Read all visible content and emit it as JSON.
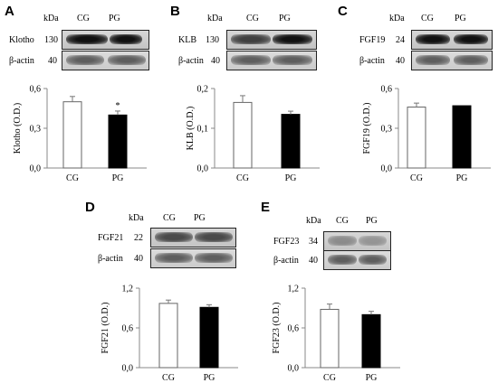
{
  "header": {
    "kda": "kDa",
    "groups": [
      "CG",
      "PG"
    ],
    "reference_protein": "β-actin",
    "actin_kda": "40"
  },
  "panels": [
    {
      "letter": "A",
      "protein": "Klotho",
      "kda": "130"
    },
    {
      "letter": "B",
      "protein": "KLB",
      "kda": "130"
    },
    {
      "letter": "C",
      "protein": "FGF19",
      "kda": "24"
    },
    {
      "letter": "D",
      "protein": "FGF21",
      "kda": "22"
    },
    {
      "letter": "E",
      "protein": "FGF23",
      "kda": "34"
    }
  ],
  "chart_data": [
    {
      "type": "bar",
      "panel": "A",
      "categories": [
        "CG",
        "PG"
      ],
      "values": [
        0.5,
        0.4
      ],
      "errors": [
        0.04,
        0.03
      ],
      "ylabel": "Klotho (O.D.)",
      "ylim": [
        0,
        0.6
      ],
      "yticks": [
        "0,0",
        "0,3",
        "0,6"
      ],
      "significance": [
        "",
        "*"
      ],
      "bar_fill": [
        "#ffffff",
        "#000000"
      ]
    },
    {
      "type": "bar",
      "panel": "B",
      "categories": [
        "CG",
        "PG"
      ],
      "values": [
        0.165,
        0.135
      ],
      "errors": [
        0.017,
        0.008
      ],
      "ylabel": "KLB (O.D.)",
      "ylim": [
        0,
        0.2
      ],
      "yticks": [
        "0,0",
        "0,1",
        "0,2"
      ],
      "significance": [
        "",
        ""
      ],
      "bar_fill": [
        "#ffffff",
        "#000000"
      ]
    },
    {
      "type": "bar",
      "panel": "C",
      "categories": [
        "CG",
        "PG"
      ],
      "values": [
        0.46,
        0.47
      ],
      "errors": [
        0.03,
        0.0
      ],
      "ylabel": "FGF19 (O.D.)",
      "ylim": [
        0,
        0.6
      ],
      "yticks": [
        "0,0",
        "0,3",
        "0,6"
      ],
      "significance": [
        "",
        ""
      ],
      "bar_fill": [
        "#ffffff",
        "#000000"
      ]
    },
    {
      "type": "bar",
      "panel": "D",
      "categories": [
        "CG",
        "PG"
      ],
      "values": [
        0.97,
        0.91
      ],
      "errors": [
        0.05,
        0.04
      ],
      "ylabel": "FGF21 (O.D.)",
      "ylim": [
        0,
        1.2
      ],
      "yticks": [
        "0,0",
        "0,6",
        "1,2"
      ],
      "significance": [
        "",
        ""
      ],
      "bar_fill": [
        "#ffffff",
        "#000000"
      ]
    },
    {
      "type": "bar",
      "panel": "E",
      "categories": [
        "CG",
        "PG"
      ],
      "values": [
        0.88,
        0.8
      ],
      "errors": [
        0.08,
        0.05
      ],
      "ylabel": "FGF23 (O.D.)",
      "ylim": [
        0,
        1.2
      ],
      "yticks": [
        "0,0",
        "0,6",
        "1,2"
      ],
      "significance": [
        "",
        ""
      ],
      "bar_fill": [
        "#ffffff",
        "#000000"
      ]
    }
  ]
}
